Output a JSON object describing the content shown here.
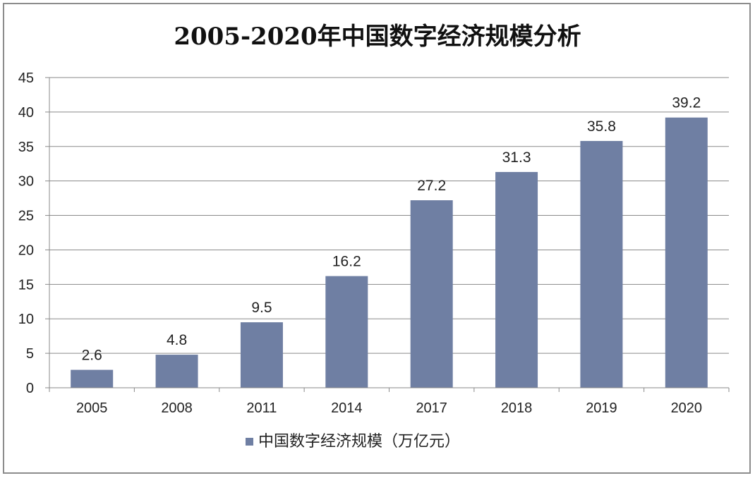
{
  "chart_data": {
    "type": "bar",
    "title": "2005-2020年中国数字经济规模分析",
    "categories": [
      "2005",
      "2008",
      "2011",
      "2014",
      "2017",
      "2018",
      "2019",
      "2020"
    ],
    "series": [
      {
        "name": "中国数字经济规模（万亿元）",
        "values": [
          2.6,
          4.8,
          9.5,
          16.2,
          27.2,
          31.3,
          35.8,
          39.2
        ],
        "color": "#6f7fa3"
      }
    ],
    "data_labels": [
      "2.6",
      "4.8",
      "9.5",
      "16.2",
      "27.2",
      "31.3",
      "35.8",
      "39.2"
    ],
    "y_ticks": [
      "0",
      "5",
      "10",
      "15",
      "20",
      "25",
      "30",
      "35",
      "40",
      "45"
    ],
    "ylim": [
      0,
      45
    ],
    "xlabel": "",
    "ylabel": "",
    "grid": true,
    "legend_position": "bottom"
  }
}
